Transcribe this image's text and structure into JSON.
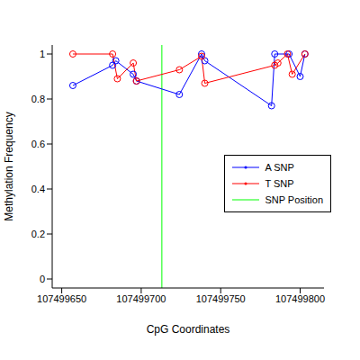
{
  "chart_data": {
    "type": "line",
    "x_label": "CpG Coordinates",
    "y_label": "Methylation Frequency",
    "xlim": [
      107499644,
      107499815
    ],
    "xticks": [
      107499650,
      107499700,
      107499750,
      107499800
    ],
    "ylim": [
      -0.04,
      1.04
    ],
    "yticks": [
      0,
      0.2,
      0.4,
      0.6,
      0.8,
      1
    ],
    "legend": "right",
    "series": [
      {
        "name": "A SNP",
        "color": "#0000ff",
        "marker": "circle",
        "x": [
          107499657,
          107499682,
          107499684,
          107499695,
          107499697,
          107499724,
          107499738,
          107499740,
          107499782,
          107499784,
          107499793,
          107499800,
          107499803
        ],
        "values": [
          0.86,
          0.95,
          0.97,
          0.91,
          0.88,
          0.82,
          1.0,
          0.97,
          0.77,
          1.0,
          1.0,
          0.9,
          1.0
        ]
      },
      {
        "name": "T SNP",
        "color": "#ff0000",
        "marker": "circle",
        "x": [
          107499657,
          107499682,
          107499685,
          107499695,
          107499697,
          107499724,
          107499738,
          107499740,
          107499784,
          107499786,
          107499792,
          107499795,
          107499803
        ],
        "values": [
          1.0,
          1.0,
          0.89,
          0.96,
          0.88,
          0.93,
          0.99,
          0.87,
          0.95,
          0.96,
          1.0,
          0.91,
          1.0
        ]
      }
    ],
    "reference_lines": [
      {
        "name": "SNP Position",
        "x": 107499713,
        "color": "#00ff00"
      }
    ]
  }
}
